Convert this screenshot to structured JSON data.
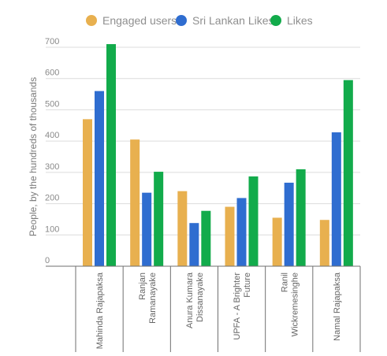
{
  "chart_data": {
    "type": "bar",
    "title": "",
    "xlabel": "",
    "ylabel": "People, by the hundreds of thousands",
    "ylim": [
      0,
      700
    ],
    "yticks": [
      0,
      100,
      200,
      300,
      400,
      500,
      600,
      700
    ],
    "grid": true,
    "legend_position": "top",
    "categories": [
      [
        "Mahinda Rajapaksa"
      ],
      [
        "Ranjan",
        "Ramanayake"
      ],
      [
        "Anura Kumara",
        "Dissanayake"
      ],
      [
        "UPFA - A Brighter",
        "Future"
      ],
      [
        "Ranil",
        "Wickremesinghe"
      ],
      [
        "Namal Rajapaksa"
      ]
    ],
    "series": [
      {
        "name": "Engaged users",
        "color": "#E8B04F",
        "values": [
          470,
          405,
          240,
          190,
          155,
          148
        ]
      },
      {
        "name": "Sri Lankan Likes",
        "color": "#2F6DD0",
        "values": [
          560,
          235,
          138,
          218,
          267,
          428
        ]
      },
      {
        "name": "Likes",
        "color": "#12AB4B",
        "values": [
          710,
          302,
          177,
          287,
          310,
          595
        ]
      }
    ]
  }
}
